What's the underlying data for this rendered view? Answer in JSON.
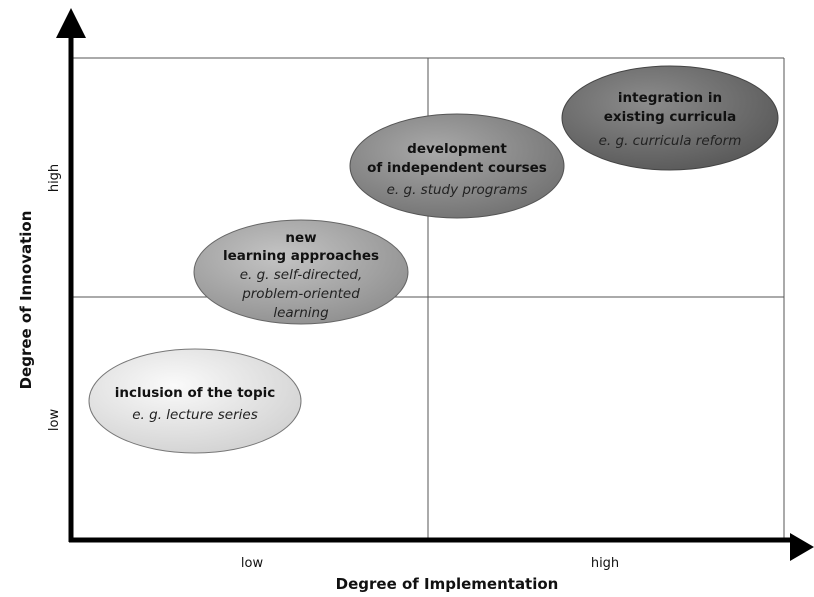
{
  "axes": {
    "x_title": "Degree of Implementation",
    "y_title": "Degree of Innovation",
    "x_low": "low",
    "x_high": "high",
    "y_low": "low",
    "y_high": "high"
  },
  "ellipses": [
    {
      "id": "inclusion",
      "bold_lines": [
        "inclusion of the topic"
      ],
      "italic_lines": [
        "e. g. lecture series"
      ],
      "fill_color": "#e2e2e2"
    },
    {
      "id": "new-learning",
      "bold_lines": [
        "new",
        "learning approaches"
      ],
      "italic_lines": [
        "e. g. self-directed,",
        "problem-oriented",
        "learning"
      ],
      "fill_color": "#a6a6a6"
    },
    {
      "id": "development",
      "bold_lines": [
        "development",
        "of independent courses"
      ],
      "italic_lines": [
        "e. g. study programs"
      ],
      "fill_color": "#8a8a8a"
    },
    {
      "id": "integration",
      "bold_lines": [
        "integration in",
        "existing curricula"
      ],
      "italic_lines": [
        "e. g. curricula reform"
      ],
      "fill_color": "#6f6f6f"
    }
  ]
}
